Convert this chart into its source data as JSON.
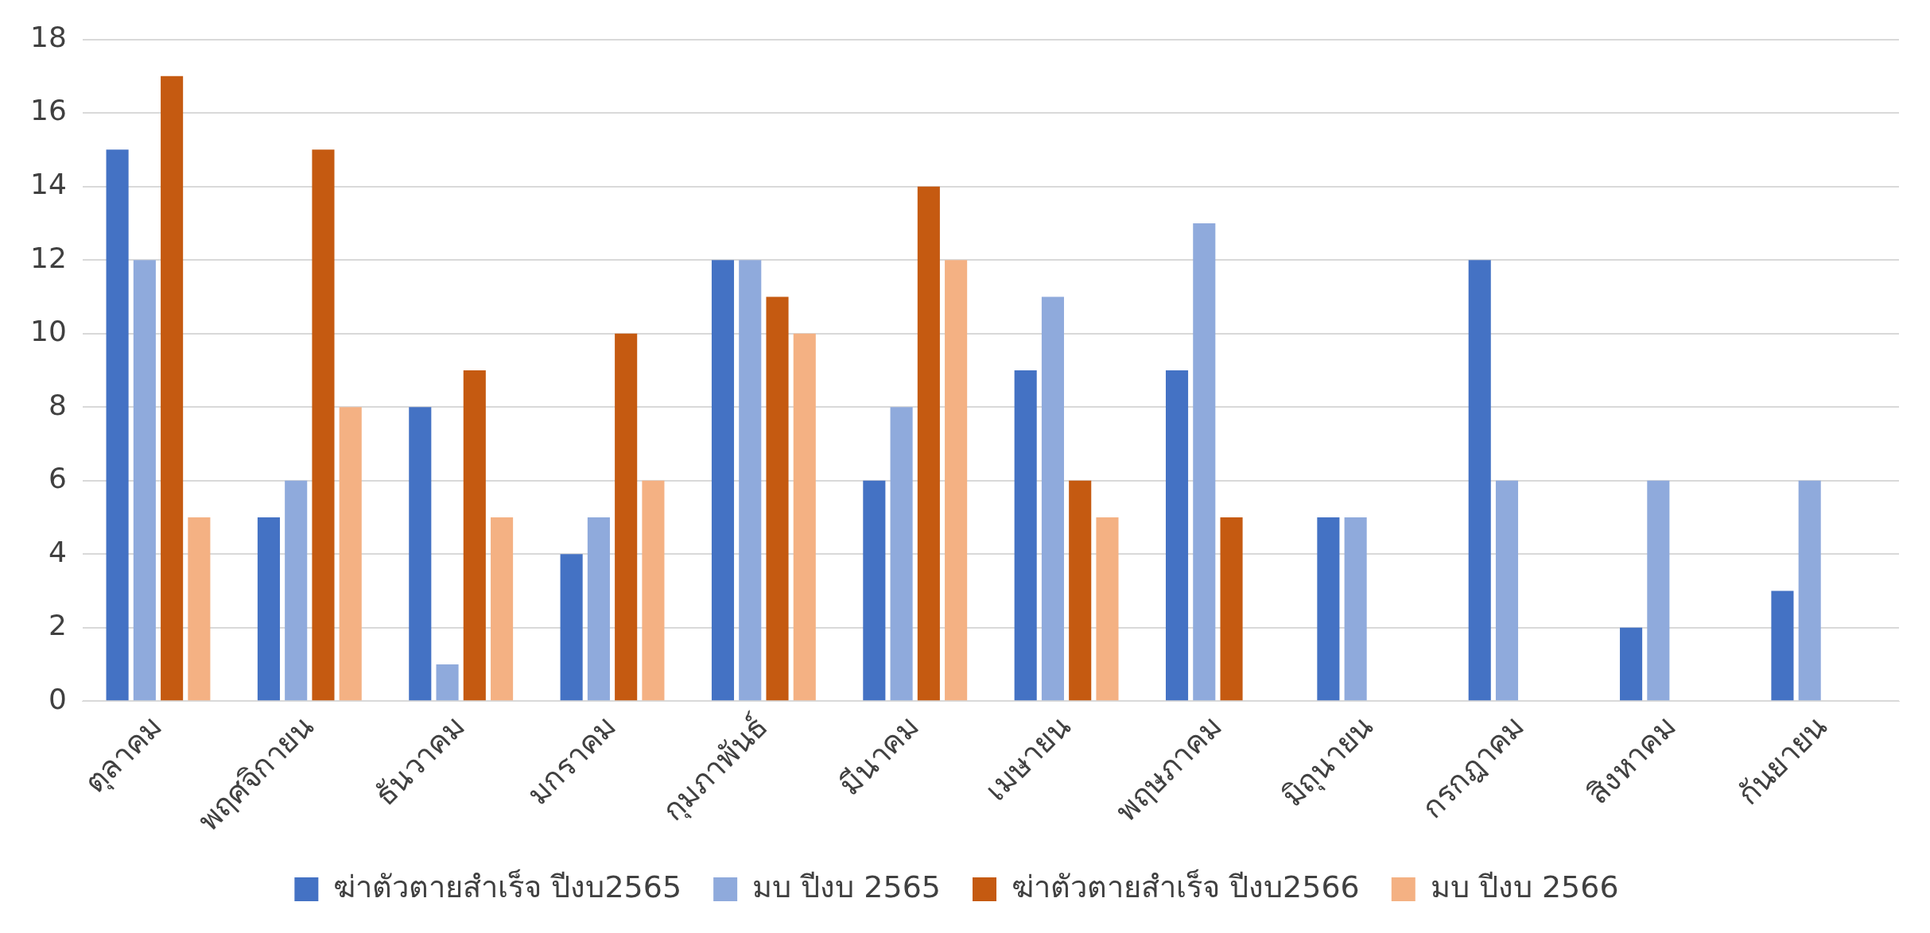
{
  "chart_data": {
    "type": "bar",
    "categories": [
      "ตุลาคม",
      "พฤศจิกายน",
      "ธันวาคม",
      "มกราคม",
      "กุมภาพันธ์",
      "มีนาคม",
      "เมษายน",
      "พฤษภาคม",
      "มิถุนายน",
      "กรกฎาคม",
      "สิงหาคม",
      "กันยายน"
    ],
    "series": [
      {
        "name": "ฆ่าตัวตายสำเร็จ ปีงบ2565",
        "color": "#4472c4",
        "values": [
          15,
          5,
          8,
          4,
          12,
          6,
          9,
          9,
          5,
          12,
          2,
          3
        ]
      },
      {
        "name": "มบ ปีงบ 2565",
        "color": "#8faadc",
        "values": [
          12,
          6,
          1,
          5,
          12,
          8,
          11,
          13,
          5,
          6,
          6,
          6
        ]
      },
      {
        "name": "ฆ่าตัวตายสำเร็จ ปีงบ2566",
        "color": "#c55a11",
        "values": [
          17,
          15,
          9,
          10,
          11,
          14,
          6,
          5,
          null,
          null,
          null,
          null
        ]
      },
      {
        "name": "มบ ปีงบ 2566",
        "color": "#f4b183",
        "values": [
          5,
          8,
          5,
          6,
          10,
          12,
          5,
          null,
          null,
          null,
          null,
          null
        ]
      }
    ],
    "ylim": [
      0,
      18
    ],
    "yticks": [
      0,
      2,
      4,
      6,
      8,
      10,
      12,
      14,
      16,
      18
    ],
    "grid": "y",
    "legend": "bottom"
  }
}
